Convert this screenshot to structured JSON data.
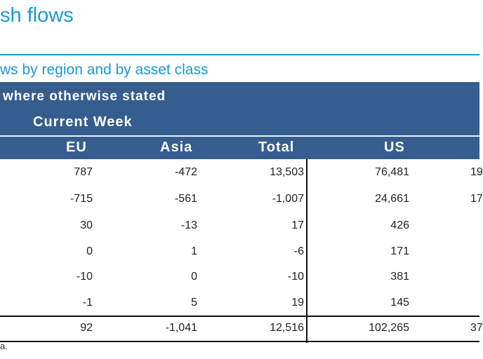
{
  "title": "sh flows",
  "subtitle": "ws by region and by asset class",
  "table": {
    "note": "where otherwise stated",
    "group_header": "Current Week",
    "columns": [
      "EU",
      "Asia",
      "Total",
      "US"
    ],
    "rows": [
      {
        "eu": "787",
        "asia": "-472",
        "total": "13,503",
        "us": "76,481",
        "next": "19"
      },
      {
        "eu": "-715",
        "asia": "-561",
        "total": "-1,007",
        "us": "24,661",
        "next": "17"
      },
      {
        "eu": "30",
        "asia": "-13",
        "total": "17",
        "us": "426",
        "next": ""
      },
      {
        "eu": "0",
        "asia": "1",
        "total": "-6",
        "us": "171",
        "next": ""
      },
      {
        "eu": "-10",
        "asia": "0",
        "total": "-10",
        "us": "381",
        "next": ""
      },
      {
        "eu": "-1",
        "asia": "5",
        "total": "19",
        "us": "145",
        "next": ""
      }
    ],
    "total_row": {
      "eu": "92",
      "asia": "-1,041",
      "total": "12,516",
      "us": "102,265",
      "next": "37"
    }
  },
  "footer": "a.",
  "colors": {
    "accent": "#1a9ad6",
    "header_bg": "#355e8e"
  }
}
